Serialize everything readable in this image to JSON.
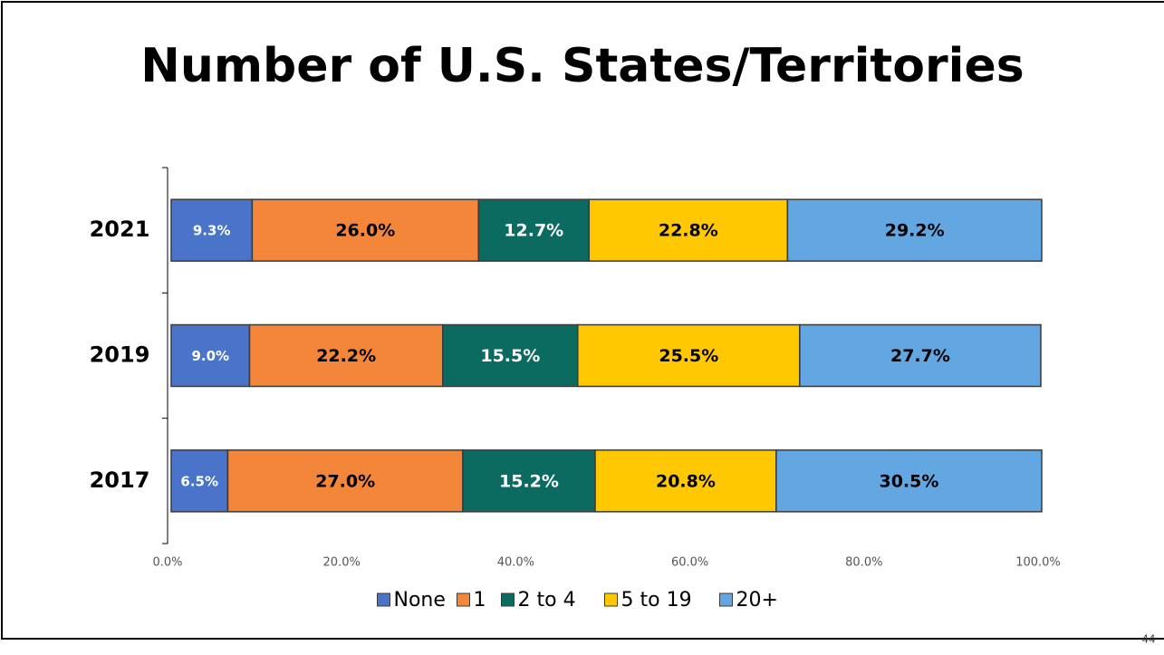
{
  "chart_data": {
    "type": "stacked_bar_horizontal",
    "title": "Number of U.S. States/Territories",
    "categories": [
      "2021",
      "2019",
      "2017"
    ],
    "series": [
      {
        "name": "None",
        "color": "#4a74c9",
        "values": [
          9.3,
          9.0,
          6.5
        ],
        "value_labels": [
          "9.3%",
          "9.0%",
          "6.5%"
        ]
      },
      {
        "name": "1",
        "color": "#f4863a",
        "values": [
          26.0,
          22.2,
          27.0
        ],
        "value_labels": [
          "26.0%",
          "22.2%",
          "27.0%"
        ]
      },
      {
        "name": "2 to 4",
        "color": "#0b6b60",
        "values": [
          12.7,
          15.5,
          15.2
        ],
        "value_labels": [
          "12.7%",
          "15.5%",
          "15.2%"
        ]
      },
      {
        "name": "5 to 19",
        "color": "#ffc800",
        "values": [
          22.8,
          25.5,
          20.8
        ],
        "value_labels": [
          "22.8%",
          "25.5%",
          "20.8%"
        ]
      },
      {
        "name": "20+",
        "color": "#62a6e2",
        "values": [
          29.2,
          27.7,
          30.5
        ],
        "value_labels": [
          "29.2%",
          "27.7%",
          "30.5%"
        ]
      }
    ],
    "xlim": [
      0,
      100
    ],
    "xticks": [
      {
        "value": 0,
        "label": "0.0%"
      },
      {
        "value": 20,
        "label": "20.0%"
      },
      {
        "value": 40,
        "label": "40.0%"
      },
      {
        "value": 60,
        "label": "60.0%"
      },
      {
        "value": 80,
        "label": "80.0%"
      },
      {
        "value": 100,
        "label": "100.0%"
      }
    ],
    "legend": "bottom"
  },
  "page_number": "44"
}
